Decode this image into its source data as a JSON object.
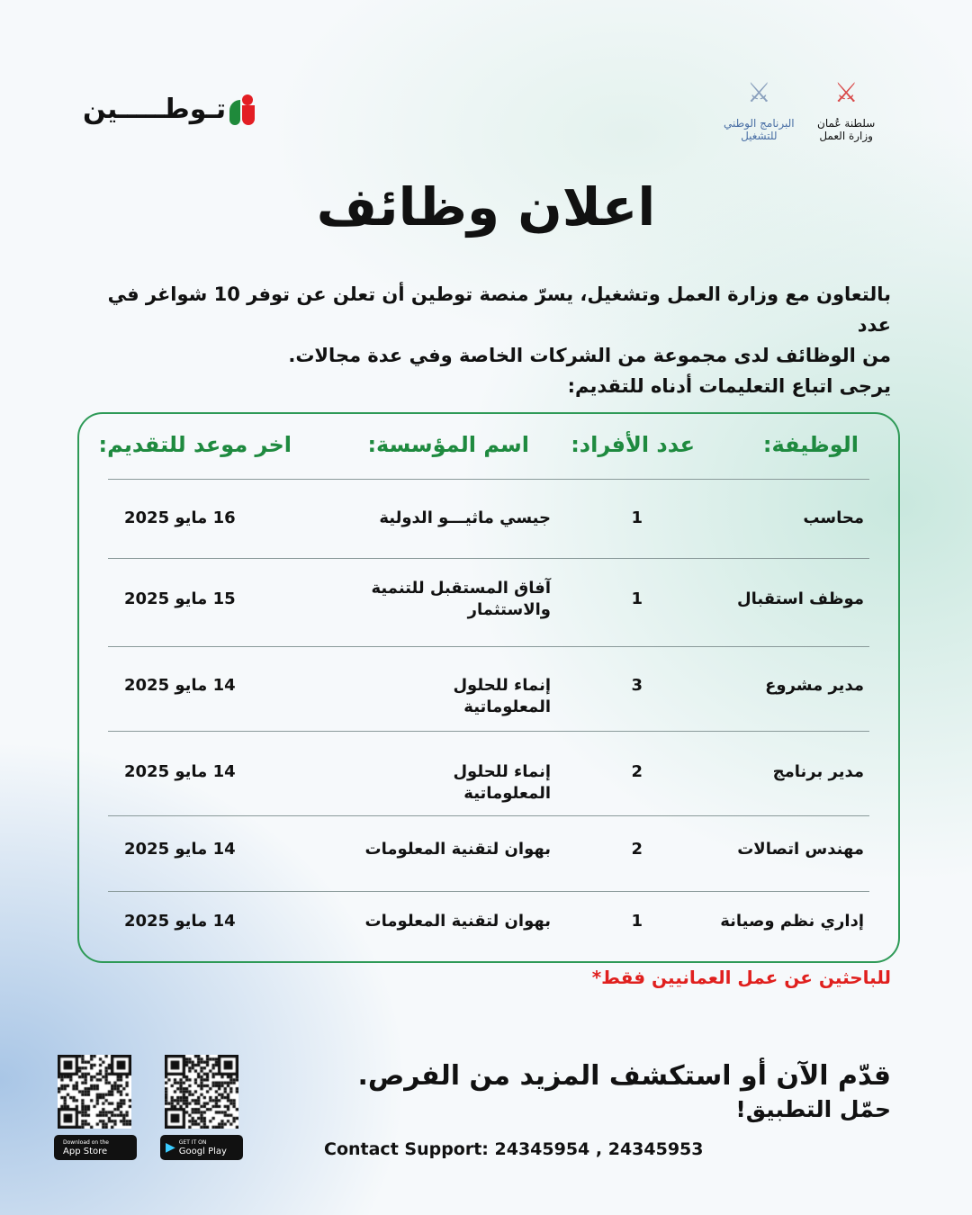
{
  "brand": {
    "name": "تـوطـــــين",
    "icon": "tawteen-logo-icon",
    "colors": {
      "red": "#e31e24",
      "green": "#1f8a3b"
    }
  },
  "gov_logos": [
    {
      "text": "سلطنة عُمان",
      "text2": "وزارة العمل",
      "color": "#c0392b"
    },
    {
      "text": "البرنامج الوطني",
      "text2": "للتشغيل",
      "color": "#4a6fa5"
    }
  ],
  "title": "اعلان وظائف",
  "intro": [
    "بالتعاون مع وزارة العمل وتشغيل، يسرّ منصة توطين أن تعلن عن توفر 10 شواغر في عدد",
    "من الوظائف لدى مجموعة من الشركات الخاصة وفي عدة مجالات.",
    "يرجى اتباع التعليمات أدناه للتقديم:"
  ],
  "table": {
    "headers": [
      "الوظيفة:",
      "عدد الأفراد:",
      "اسم المؤسسة:",
      "اخر موعد للتقديم:"
    ],
    "rows": [
      [
        "محاسب",
        "1",
        "جيسي ماثيـــو الدولية",
        "16 مايو 2025"
      ],
      [
        "موظف استقبال",
        "1",
        "آفاق المستقبل للتنمية والاستثمار",
        "15 مايو 2025"
      ],
      [
        "مدير مشروع",
        "3",
        "إنماء للحلول المعلوماتية",
        "14 مايو 2025"
      ],
      [
        "مدير برنامج",
        "2",
        "إنماء للحلول المعلوماتية",
        "14 مايو 2025"
      ],
      [
        "مهندس اتصالات",
        "2",
        "بهوان لتقنية المعلومات",
        "14 مايو 2025"
      ],
      [
        "إداري نظم وصيانة",
        "1",
        "بهوان لتقنية المعلومات",
        "14 مايو 2025"
      ]
    ]
  },
  "note": "للباحثين عن عمل العمانيين فقط*",
  "cta": {
    "line1": "قدّم الآن أو استكشف المزيد من الفرص.",
    "line2": "حمّل التطبيق!"
  },
  "contact": "Contact Support: 24345954 , 24345953",
  "stores": {
    "apple_small": "Download on the",
    "apple": "App Store",
    "google_small": "GET IT ON",
    "google": "Googl Play"
  }
}
